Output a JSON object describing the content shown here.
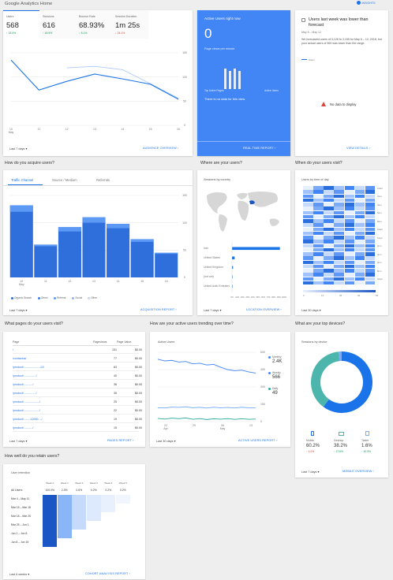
{
  "header": {
    "title": "Google Analytics Home",
    "insights_label": "INSIGHTS"
  },
  "overview": {
    "metrics": [
      {
        "label": "Users",
        "value": "568",
        "change": "↑ 18.5%",
        "color": "#0f9d58"
      },
      {
        "label": "Sessions",
        "value": "616",
        "change": "↑ 18.5%",
        "color": "#0f9d58"
      },
      {
        "label": "Bounce Rate",
        "value": "68.93%",
        "change": "↓ 8.1%",
        "color": "#0f9d58"
      },
      {
        "label": "Session Duration",
        "value": "1m 25s",
        "change": "↓ 24.1%",
        "color": "#db4437"
      }
    ],
    "y_ticks": [
      "150",
      "100",
      "50",
      "0"
    ],
    "x_ticks": [
      "10\nMay",
      "11",
      "12",
      "13",
      "14",
      "15",
      "16"
    ],
    "series_current": [
      135,
      73,
      91,
      106,
      96,
      85,
      54
    ],
    "series_previous": [
      null,
      null,
      119,
      122,
      115,
      86,
      56
    ],
    "date_range": "Last 7 days ▾",
    "report_link": "AUDIENCE OVERVIEW ›"
  },
  "realtime": {
    "title": "Active Users right now",
    "value": "0",
    "sub": "Page views per minute",
    "col_left": "Top Active Pages",
    "col_right": "Active Users",
    "empty": "There is no data for this view.",
    "report_link": "REAL-TIME REPORT ›"
  },
  "insight": {
    "headline": "Users last week was lower than forecast",
    "date": "May 6 – May 12",
    "body": "We forecasted users of 3,126 to 3,155 for May 6 – 12, 2018, but your actual users of 569 was lower than the range.",
    "legend": "Users",
    "no_data": "No data to display",
    "report_link": "VIEW DETAILS ›"
  },
  "acquisition": {
    "section_title": "How do you acquire users?",
    "tabs": [
      "Traffic Channel",
      "Source / Medium",
      "Referrals"
    ],
    "y_ticks": [
      "150",
      "100",
      "50",
      "0"
    ],
    "x_ticks": [
      "10\nMay",
      "11",
      "12",
      "13",
      "14",
      "15",
      "16"
    ],
    "values": [
      132,
      60,
      92,
      110,
      98,
      70,
      45
    ],
    "values_top": [
      12,
      3,
      8,
      10,
      8,
      5,
      2
    ],
    "legend": [
      "Organic Search",
      "Direct",
      "Referral",
      "Social",
      "Other"
    ],
    "legend_colors": [
      "#2f6fdb",
      "#3b7ff0",
      "#5c99f5",
      "#8ab6f8",
      "#c1d7fb"
    ],
    "date_range": "Last 7 days ▾",
    "report_link": "ACQUISITION REPORT ›"
  },
  "geo": {
    "section_title": "Where are your users?",
    "sub": "Sessions by country",
    "countries": [
      "Iran",
      "United States",
      "United Kingdom",
      "(not set)",
      "United Arab Emirates"
    ],
    "values": [
      0.92,
      0.05,
      0.02,
      0.01,
      0.01
    ],
    "x_ticks": [
      "0%",
      "10%",
      "20%",
      "30%",
      "40%",
      "50%",
      "60%",
      "70%",
      "80%",
      "90%",
      "100%"
    ],
    "date_range": "Last 7 days ▾",
    "report_link": "LOCATION OVERVIEW ›"
  },
  "time": {
    "section_title": "When do your users visit?",
    "sub": "Users by time of day",
    "hours": [
      "12am",
      "2am",
      "4am",
      "6am",
      "8am",
      "10am",
      "12pm",
      "2pm",
      "4pm",
      "6pm",
      "8pm",
      "10pm"
    ],
    "days": [
      "Sun",
      "Mon",
      "Tue",
      "Wed",
      "Thu",
      "Fri",
      "Sat"
    ],
    "scale": [
      "0",
      "13",
      "26",
      "39",
      "52"
    ],
    "date_range": "Last 30 days ▾"
  },
  "pages": {
    "section_title": "What pages do your users visit?",
    "cols": [
      "Page",
      "Pageviews",
      "Page Value"
    ],
    "rows": [
      [
        "/",
        "151",
        "$0.00"
      ],
      [
        "/contactus/",
        "77",
        "$0.00"
      ],
      [
        "/product/...-...-...-...-...-12/",
        "63",
        "$0.00"
      ],
      [
        "/product/...-...-...-.../",
        "40",
        "$0.00"
      ],
      [
        "/product/...-...-.../",
        "36",
        "$0.00"
      ],
      [
        "/product/...-...-...-.../",
        "35",
        "$0.00"
      ],
      [
        "/product/...-...-...-...-.../",
        "25",
        "$0.00"
      ],
      [
        "/product/...-...-...-...-.../",
        "22",
        "$0.00"
      ],
      [
        "/product/...-...-12000-.../",
        "19",
        "$0.00"
      ],
      [
        "/product/...-...-.../",
        "15",
        "$0.00"
      ]
    ],
    "date_range": "Last 7 days ▾",
    "report_link": "PAGES REPORT ›"
  },
  "trending": {
    "section_title": "How are your active users trending over time?",
    "sub": "Active Users",
    "y_ticks": [
      "600",
      "450",
      "300",
      "150",
      "0"
    ],
    "x_ticks": [
      "22\nApr",
      "29",
      "06\nMay",
      "13"
    ],
    "legend": [
      {
        "label": "Monthly",
        "value": "2.4K",
        "color": "#4285f4"
      },
      {
        "label": "Weekly",
        "value": "566",
        "color": "#4285f4"
      },
      {
        "label": "Daily",
        "value": "49",
        "color": "#26a69a"
      }
    ],
    "monthly": [
      540,
      525,
      530,
      515,
      520,
      500,
      505,
      490,
      495,
      470,
      450,
      440,
      445,
      430,
      420
    ],
    "weekly": [
      120,
      118,
      126,
      123,
      128,
      120,
      124,
      117,
      125,
      119,
      122,
      118,
      124,
      120,
      118
    ],
    "daily": [
      28,
      22,
      30,
      25,
      32,
      20,
      26,
      18,
      24,
      21,
      26,
      19,
      25,
      20,
      22
    ],
    "date_range": "Last 30 days ▾",
    "report_link": "ACTIVE USERS REPORT ›"
  },
  "devices": {
    "section_title": "What are your top devices?",
    "sub": "Sessions by device",
    "items": [
      {
        "label": "Mobile",
        "value": "60.2%",
        "change": "↑ 4.0%",
        "color": "#1a73e8",
        "change_color": "#db4437"
      },
      {
        "label": "Desktop",
        "value": "38.2%",
        "change": "↑ 17.6%",
        "color": "#4db6ac",
        "change_color": "#0f9d58"
      },
      {
        "label": "Tablet",
        "value": "1.6%",
        "change": "↑ 40.3%",
        "color": "#7baaf7",
        "change_color": "#0f9d58"
      }
    ],
    "shares": [
      0.602,
      0.382,
      0.016
    ],
    "date_range": "Last 7 days ▾",
    "report_link": "MOBILE OVERVIEW ›"
  },
  "retention": {
    "section_title": "How well do you retain users?",
    "sub": "User retention",
    "cols": [
      "Week 0",
      "Week 1",
      "Week 2",
      "Week 3",
      "Week 4",
      "Week 5"
    ],
    "all_label": "All Users",
    "all_values": [
      "100.0%",
      "2.3%",
      "0.6%",
      "0.2%",
      "0.2%",
      "0.2%"
    ],
    "rows": [
      "Mar 4 – May 11",
      "Mar 15 – Mar 18",
      "Mar 18 – Mar 25",
      "Mar 25 – Jun 1",
      "Jun 1 – Jun 8",
      "Jun 8 – Jun 15"
    ],
    "date_range": "Last 6 weeks ▾",
    "report_link": "COHORT ANALYSIS REPORT ›"
  }
}
